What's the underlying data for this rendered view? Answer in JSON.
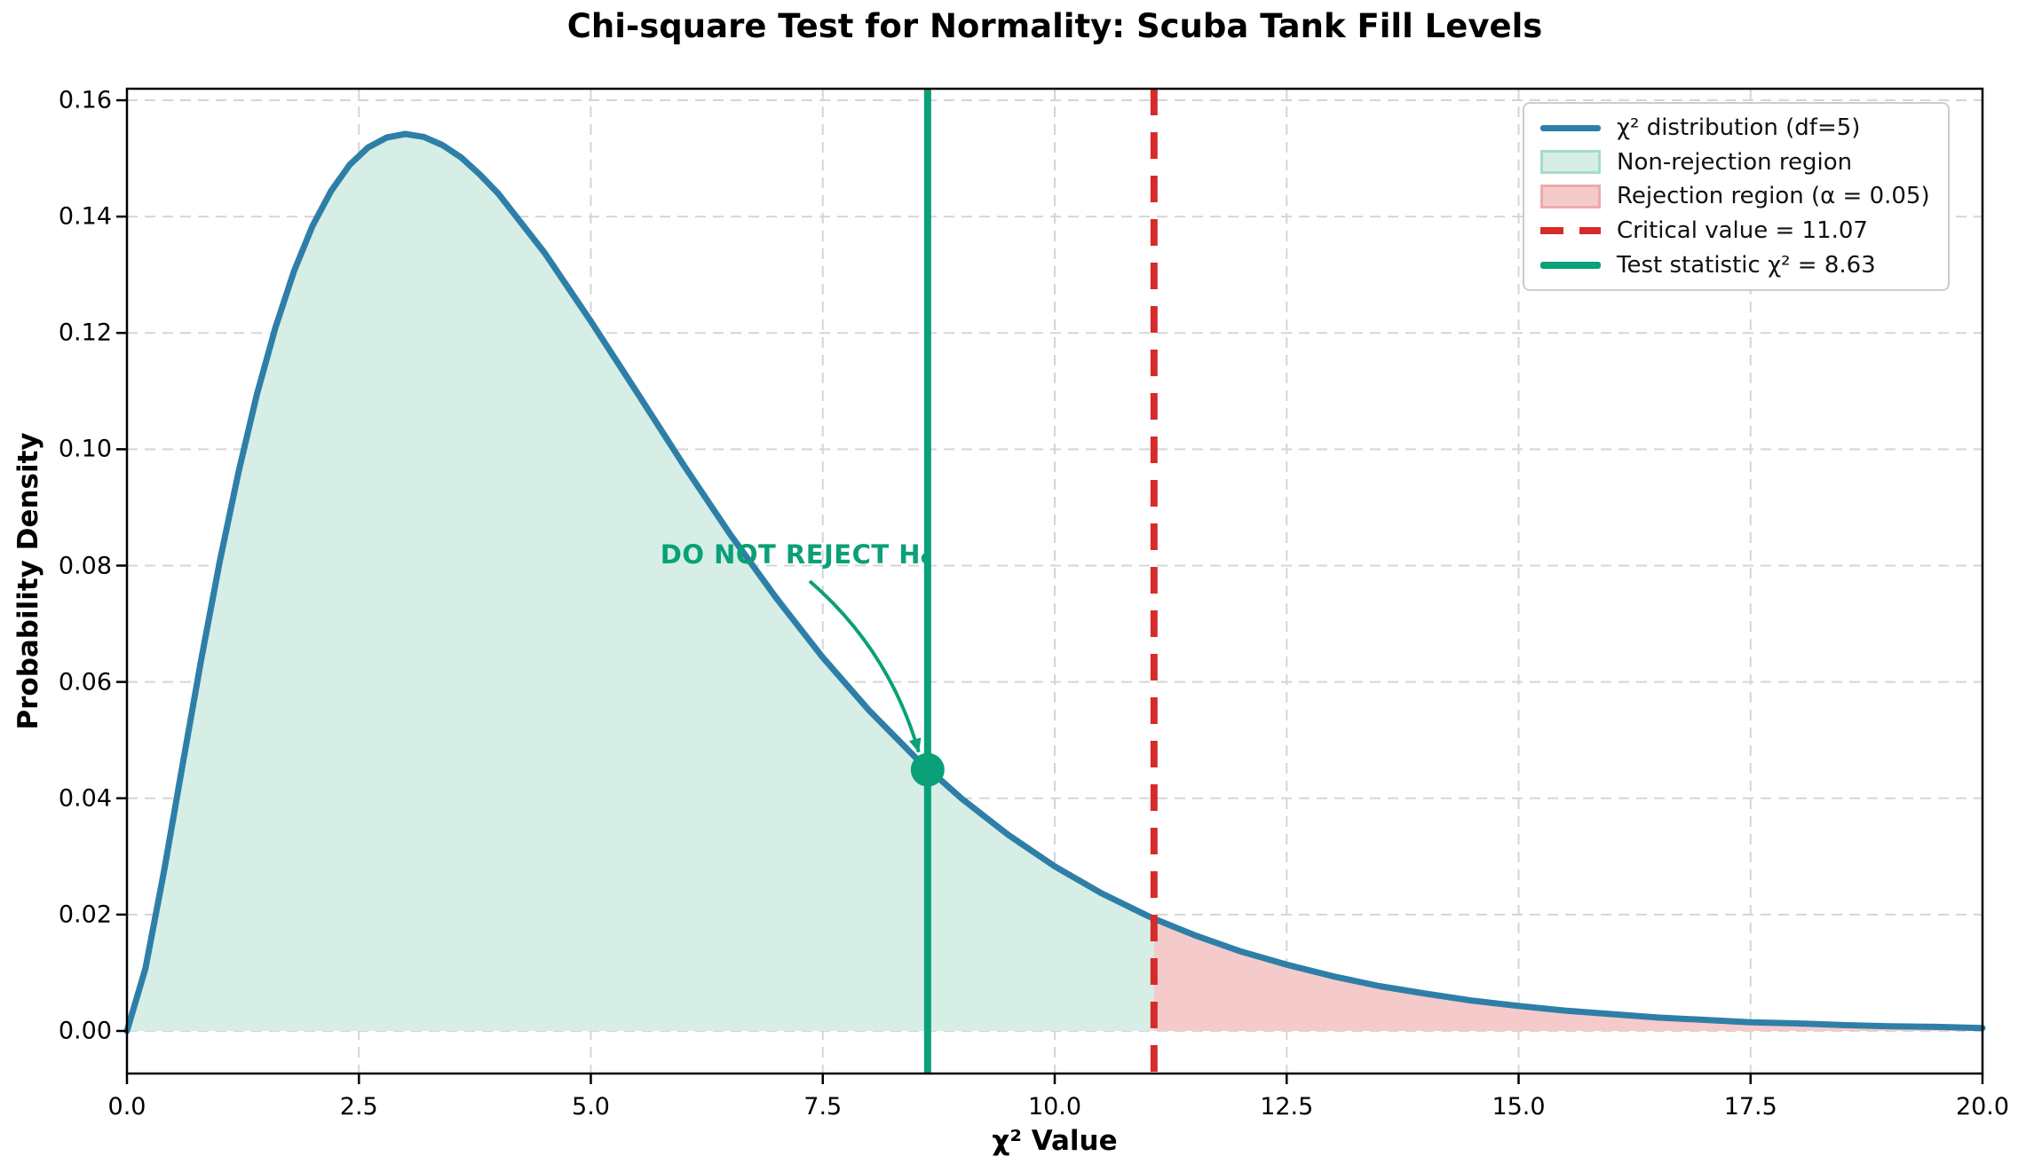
{
  "title": "Chi-square Test for Normality: Scuba Tank Fill Levels",
  "axes": {
    "xlabel": "χ² Value",
    "ylabel": "Probability Density",
    "x_tick_labels": [
      "0.0",
      "2.5",
      "5.0",
      "7.5",
      "10.0",
      "12.5",
      "15.0",
      "17.5",
      "20.0"
    ],
    "y_tick_labels": [
      "0.00",
      "0.02",
      "0.04",
      "0.06",
      "0.08",
      "0.10",
      "0.12",
      "0.14",
      "0.16"
    ]
  },
  "chart_data": {
    "type": "line",
    "title": "Chi-square Test for Normality: Scuba Tank Fill Levels",
    "xlabel": "χ² Value",
    "ylabel": "Probability Density",
    "xlim": [
      0,
      20
    ],
    "ylim": [
      -0.0073,
      0.16
    ],
    "x_ticks": [
      0,
      2.5,
      5,
      7.5,
      10,
      12.5,
      15,
      17.5,
      20
    ],
    "y_ticks": [
      0,
      0.02,
      0.04,
      0.06,
      0.08,
      0.1,
      0.12,
      0.14,
      0.16
    ],
    "grid": "dashed",
    "legend_position": "upper right",
    "distribution": "chi-square",
    "df": 5,
    "alpha": 0.05,
    "critical_value": 11.07,
    "critical_value_pdf": 0.0193,
    "test_statistic": 8.63,
    "test_statistic_pdf": 0.0449,
    "decision": "DO NOT REJECT H₀",
    "curve": [
      [
        0,
        0
      ],
      [
        0.2,
        0.0108
      ],
      [
        0.4,
        0.0275
      ],
      [
        0.6,
        0.0458
      ],
      [
        0.8,
        0.0638
      ],
      [
        1.0,
        0.0807
      ],
      [
        1.2,
        0.0959
      ],
      [
        1.4,
        0.1094
      ],
      [
        1.6,
        0.1209
      ],
      [
        1.8,
        0.1306
      ],
      [
        2.0,
        0.1384
      ],
      [
        2.2,
        0.1444
      ],
      [
        2.4,
        0.1489
      ],
      [
        2.6,
        0.1519
      ],
      [
        2.8,
        0.1536
      ],
      [
        3.0,
        0.1542
      ],
      [
        3.2,
        0.1537
      ],
      [
        3.4,
        0.1523
      ],
      [
        3.6,
        0.1502
      ],
      [
        3.8,
        0.1473
      ],
      [
        4.0,
        0.144
      ],
      [
        4.5,
        0.1338
      ],
      [
        5.0,
        0.122
      ],
      [
        5.5,
        0.1097
      ],
      [
        6.0,
        0.0973
      ],
      [
        6.5,
        0.0854
      ],
      [
        7.0,
        0.0744
      ],
      [
        7.5,
        0.0642
      ],
      [
        8.0,
        0.0551
      ],
      [
        8.5,
        0.047
      ],
      [
        9.0,
        0.0399
      ],
      [
        9.5,
        0.0337
      ],
      [
        10.0,
        0.0283
      ],
      [
        10.5,
        0.0237
      ],
      [
        11.0,
        0.0198
      ],
      [
        11.07,
        0.0193
      ],
      [
        11.5,
        0.0165
      ],
      [
        12.0,
        0.0137
      ],
      [
        12.5,
        0.0114
      ],
      [
        13.0,
        0.0094
      ],
      [
        13.5,
        0.0077
      ],
      [
        14.0,
        0.0064
      ],
      [
        14.5,
        0.0052
      ],
      [
        15.0,
        0.0043
      ],
      [
        15.5,
        0.0035
      ],
      [
        16.0,
        0.0029
      ],
      [
        16.5,
        0.0023
      ],
      [
        17.0,
        0.0019
      ],
      [
        17.5,
        0.0015
      ],
      [
        18.0,
        0.0013
      ],
      [
        18.5,
        0.001
      ],
      [
        19.0,
        0.0008
      ],
      [
        19.5,
        0.0007
      ],
      [
        20.0,
        0.0005
      ]
    ]
  },
  "legend": {
    "items": [
      {
        "label": "χ² distribution (df=5)",
        "swatch": "line-blue"
      },
      {
        "label": "Non-rejection region",
        "swatch": "patch-green"
      },
      {
        "label": "Rejection region (α = 0.05)",
        "swatch": "patch-red"
      },
      {
        "label": "Critical value = 11.07",
        "swatch": "dash-red"
      },
      {
        "label": "Test statistic χ² = 8.63",
        "swatch": "line-green"
      }
    ]
  },
  "annotation": {
    "text": "DO NOT REJECT H₀"
  },
  "colors": {
    "curve_blue": "#2E7FA8",
    "fill_green": "#D6EEE5",
    "fill_red": "#F5CACA",
    "line_red": "#D62B2B",
    "line_green": "#0AA078",
    "patch_green_border": "#A7DCC8",
    "patch_red_border": "#EFAAAA",
    "grid_gray": "#D5D5D5",
    "frame_black": "#000000"
  }
}
